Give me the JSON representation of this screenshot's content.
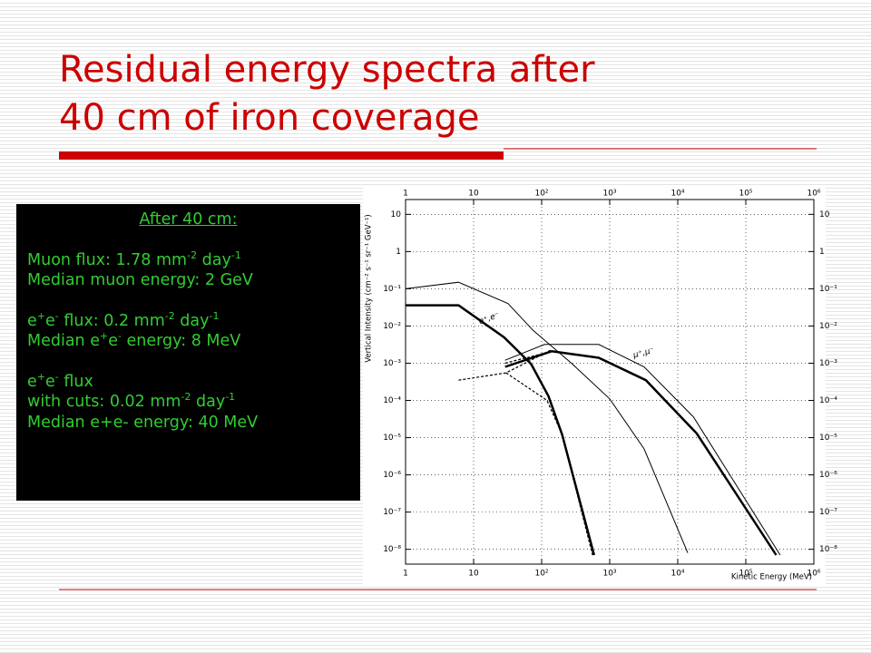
{
  "slide": {
    "title_lines": [
      "Residual energy spectra after",
      "40 cm of iron coverage"
    ]
  },
  "info_box": {
    "heading": "After 40 cm:",
    "paragraphs": [
      [
        [
          "Muon flux: 1.78 mm",
          {
            "sup": "-2"
          },
          " day",
          {
            "sup": "-1"
          }
        ],
        [
          "Median muon energy: 2 GeV"
        ]
      ],
      [
        [
          "e",
          {
            "sup": "+"
          },
          "e",
          {
            "sup": "-"
          },
          " flux: 0.2 mm",
          {
            "sup": "-2"
          },
          " day",
          {
            "sup": "-1"
          }
        ],
        [
          "Median e",
          {
            "sup": "+"
          },
          "e",
          {
            "sup": "-"
          },
          " energy: 8 MeV"
        ]
      ],
      [
        [
          "e",
          {
            "sup": "+"
          },
          "e",
          {
            "sup": "-"
          },
          " flux"
        ],
        [
          "with cuts: 0.02 mm",
          {
            "sup": "-2"
          },
          " day",
          {
            "sup": "-1"
          }
        ],
        [
          "Median e+e- energy: 40 MeV"
        ]
      ]
    ]
  },
  "chart_data": {
    "type": "line",
    "x_label": "Kinetic Energy (MeV)",
    "y_label": "Vertical Intensity (cm⁻² s⁻¹ sr⁻¹ GeV⁻¹)",
    "annotations": [
      "e⁺,e⁻",
      "μ⁺,μ⁻"
    ],
    "xlog": true,
    "ylog": true,
    "grid": true,
    "xlim": [
      1,
      1000000
    ],
    "ylim": [
      4e-09,
      25
    ],
    "xticks": [
      1,
      10,
      {
        "value": 100,
        "label": "10²"
      },
      {
        "value": 1000,
        "label": "10³"
      },
      {
        "value": 10000,
        "label": "10⁴"
      },
      {
        "value": 100000,
        "label": "10⁵"
      },
      {
        "value": 1000000,
        "label": "10⁶"
      }
    ],
    "yticks": [
      10,
      1,
      {
        "value": 0.1,
        "label": "10⁻¹"
      },
      {
        "value": 0.01,
        "label": "10⁻²"
      },
      {
        "value": 0.001,
        "label": "10⁻³"
      },
      {
        "value": 0.0001,
        "label": "10⁻⁴"
      },
      {
        "value": 1e-05,
        "label": "10⁻⁵"
      },
      {
        "value": 1e-06,
        "label": "10⁻⁶"
      },
      {
        "value": 1e-07,
        "label": "10⁻⁷"
      },
      {
        "value": 1e-08,
        "label": "10⁻⁸"
      }
    ],
    "series": [
      {
        "color": "#000000",
        "line_style": "solid",
        "line_width": 1,
        "x": [
          1,
          6,
          32,
          75,
          275,
          1000,
          3200,
          14000
        ],
        "values": [
          0.1,
          0.15,
          0.04,
          0.0076,
          0.001,
          0.00011,
          5e-06,
          8e-09
        ]
      },
      {
        "color": "#000000",
        "line_style": "solid",
        "line_width": 2.5,
        "x": [
          1,
          6,
          28,
          70,
          126,
          200,
          590
        ],
        "values": [
          0.036,
          0.036,
          0.005,
          0.00095,
          0.00013,
          1.2e-05,
          7e-09
        ]
      },
      {
        "color": "#000000",
        "line_style": "dashed",
        "line_width": 1.2,
        "x": [
          6,
          30,
          140
        ],
        "values": [
          0.00035,
          0.00055,
          0.0023
        ]
      },
      {
        "color": "#000000",
        "line_style": "dashed",
        "line_width": 1.2,
        "x": [
          30,
          120,
          200,
          560
        ],
        "values": [
          0.00055,
          0.0001,
          1.2e-05,
          7e-09
        ]
      },
      {
        "color": "#000000",
        "line_style": "solid",
        "line_width": 1,
        "x": [
          29,
          110,
          690,
          3200,
          17000,
          320000
        ],
        "values": [
          0.0012,
          0.0032,
          0.0032,
          0.0008,
          3.6e-05,
          7e-09
        ]
      },
      {
        "color": "#000000",
        "line_style": "solid",
        "line_width": 2.5,
        "x": [
          29,
          140,
          690,
          3400,
          19000,
          280000
        ],
        "values": [
          0.0008,
          0.0021,
          0.0014,
          0.00035,
          1.3e-05,
          7e-09
        ]
      },
      {
        "color": "#000000",
        "line_style": "dashed",
        "line_width": 1.2,
        "x": [
          29,
          140
        ],
        "values": [
          0.001,
          0.0021
        ]
      }
    ]
  }
}
